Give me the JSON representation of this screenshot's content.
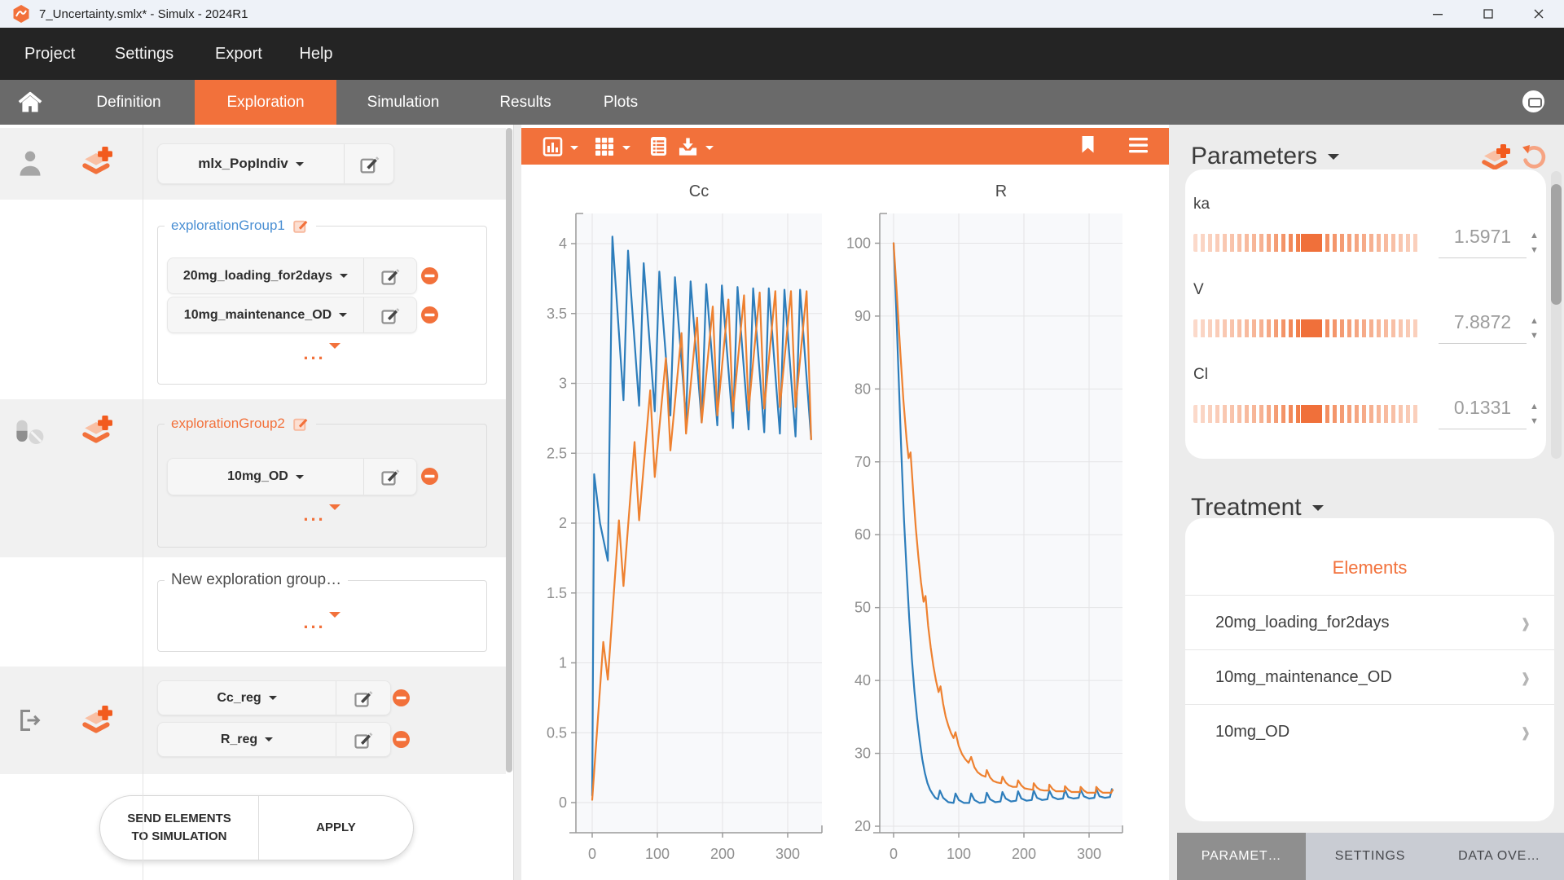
{
  "window": {
    "title": "7_Uncertainty.smlx* - Simulx - 2024R1"
  },
  "menu": {
    "items": [
      "Project",
      "Settings",
      "Export",
      "Help"
    ]
  },
  "nav": {
    "tabs": [
      {
        "label": "Definition"
      },
      {
        "label": "Exploration",
        "active": true
      },
      {
        "label": "Simulation"
      },
      {
        "label": "Results"
      },
      {
        "label": "Plots"
      }
    ]
  },
  "sidebar": {
    "model_selector": {
      "label": "mlx_PopIndiv"
    },
    "groups": [
      {
        "name": "explorationGroup1",
        "items": [
          "20mg_loading_for2days",
          "10mg_maintenance_OD"
        ]
      },
      {
        "name": "explorationGroup2",
        "items": [
          "10mg_OD"
        ]
      }
    ],
    "new_group_label": "New exploration group…",
    "more_label": "...",
    "regressors": [
      "Cc_reg",
      "R_reg"
    ],
    "send_line1": "SEND ELEMENTS",
    "send_line2": "TO SIMULATION",
    "apply_label": "APPLY"
  },
  "icons": {
    "plot_toolbar": [
      "chart-type",
      "layout-grid",
      "data-table",
      "export-download",
      "bookmark",
      "menu"
    ],
    "sidebar": [
      "individual",
      "treatment-pills",
      "output",
      "add-element",
      "edit",
      "remove"
    ]
  },
  "chart_data": [
    {
      "type": "line",
      "title": "Cc",
      "xlabel": "",
      "ylabel": "",
      "xlim": [
        -25,
        352
      ],
      "ylim": [
        -0.2,
        4.2
      ],
      "grid": true,
      "legend_position": "none",
      "xticks": [
        0,
        100,
        200,
        300
      ],
      "yticks": [
        0,
        0.5,
        1,
        1.5,
        2,
        2.5,
        3,
        3.5,
        4
      ],
      "series": [
        {
          "name": "explorationGroup1 (20mg_loading_for2days + 10mg_maintenance_OD)",
          "color": "#2d7dbb",
          "points": [
            [
              0,
              0.05
            ],
            [
              3,
              2.35
            ],
            [
              12,
              2.0
            ],
            [
              24,
              1.73
            ],
            [
              31,
              4.05
            ],
            [
              48,
              2.88
            ],
            [
              55,
              3.95
            ],
            [
              72,
              2.84
            ],
            [
              79,
              3.86
            ],
            [
              96,
              2.8
            ],
            [
              103,
              3.8
            ],
            [
              120,
              2.77
            ],
            [
              127,
              3.76
            ],
            [
              144,
              2.74
            ],
            [
              151,
              3.73
            ],
            [
              168,
              2.72
            ],
            [
              175,
              3.71
            ],
            [
              192,
              2.7
            ],
            [
              199,
              3.7
            ],
            [
              216,
              2.68
            ],
            [
              223,
              3.69
            ],
            [
              240,
              2.67
            ],
            [
              247,
              3.68
            ],
            [
              264,
              2.65
            ],
            [
              271,
              3.68
            ],
            [
              288,
              2.64
            ],
            [
              295,
              3.67
            ],
            [
              312,
              2.62
            ],
            [
              319,
              3.67
            ],
            [
              336,
              2.6
            ]
          ]
        },
        {
          "name": "explorationGroup2 (10mg_OD)",
          "color": "#ee8130",
          "points": [
            [
              0,
              0.02
            ],
            [
              17,
              1.15
            ],
            [
              24,
              0.88
            ],
            [
              41,
              2.02
            ],
            [
              48,
              1.55
            ],
            [
              65,
              2.58
            ],
            [
              72,
              2.02
            ],
            [
              89,
              2.95
            ],
            [
              96,
              2.33
            ],
            [
              113,
              3.18
            ],
            [
              120,
              2.52
            ],
            [
              137,
              3.36
            ],
            [
              144,
              2.64
            ],
            [
              161,
              3.47
            ],
            [
              168,
              2.72
            ],
            [
              185,
              3.55
            ],
            [
              192,
              2.77
            ],
            [
              209,
              3.6
            ],
            [
              216,
              2.8
            ],
            [
              233,
              3.63
            ],
            [
              240,
              2.81
            ],
            [
              257,
              3.65
            ],
            [
              264,
              2.82
            ],
            [
              281,
              3.66
            ],
            [
              288,
              2.83
            ],
            [
              305,
              3.66
            ],
            [
              312,
              2.83
            ],
            [
              329,
              3.66
            ],
            [
              336,
              2.6
            ]
          ]
        }
      ]
    },
    {
      "type": "line",
      "title": "R",
      "xlabel": "",
      "ylabel": "",
      "xlim": [
        -25,
        352
      ],
      "ylim": [
        19,
        104
      ],
      "grid": true,
      "legend_position": "none",
      "xticks": [
        0,
        100,
        200,
        300
      ],
      "yticks": [
        20,
        30,
        40,
        50,
        60,
        70,
        80,
        90,
        100
      ],
      "series": [
        {
          "name": "explorationGroup1 (20mg_loading_for2days + 10mg_maintenance_OD)",
          "color": "#2d7dbb",
          "points": [
            [
              0,
              100
            ],
            [
              4,
              91
            ],
            [
              8,
              81
            ],
            [
              12,
              71
            ],
            [
              16,
              62
            ],
            [
              20,
              55
            ],
            [
              24,
              48.5
            ],
            [
              28,
              43
            ],
            [
              32,
              38.5
            ],
            [
              36,
              34.8
            ],
            [
              40,
              31.8
            ],
            [
              44,
              29.2
            ],
            [
              48,
              27.3
            ],
            [
              52,
              25.9
            ],
            [
              56,
              25
            ],
            [
              60,
              24.4
            ],
            [
              64,
              23.9
            ],
            [
              68,
              23.7
            ],
            [
              71,
              24.9
            ],
            [
              76,
              23.9
            ],
            [
              84,
              23.3
            ],
            [
              92,
              23.2
            ],
            [
              95,
              24.5
            ],
            [
              100,
              23.6
            ],
            [
              108,
              23.2
            ],
            [
              116,
              23.2
            ],
            [
              119,
              24.5
            ],
            [
              124,
              23.6
            ],
            [
              132,
              23.2
            ],
            [
              140,
              23.3
            ],
            [
              143,
              24.6
            ],
            [
              148,
              23.7
            ],
            [
              156,
              23.3
            ],
            [
              164,
              23.4
            ],
            [
              167,
              24.7
            ],
            [
              172,
              23.8
            ],
            [
              180,
              23.4
            ],
            [
              188,
              23.5
            ],
            [
              191,
              24.8
            ],
            [
              196,
              23.8
            ],
            [
              204,
              23.5
            ],
            [
              212,
              23.6
            ],
            [
              215,
              24.9
            ],
            [
              220,
              23.9
            ],
            [
              228,
              23.6
            ],
            [
              236,
              23.7
            ],
            [
              239,
              24.9
            ],
            [
              244,
              24
            ],
            [
              252,
              23.7
            ],
            [
              260,
              23.8
            ],
            [
              263,
              25
            ],
            [
              268,
              24
            ],
            [
              276,
              23.8
            ],
            [
              284,
              23.9
            ],
            [
              287,
              25
            ],
            [
              292,
              24.1
            ],
            [
              300,
              23.8
            ],
            [
              308,
              23.9
            ],
            [
              311,
              25.1
            ],
            [
              316,
              24.1
            ],
            [
              324,
              23.9
            ],
            [
              332,
              24
            ],
            [
              335,
              25.1
            ],
            [
              336,
              24.9
            ]
          ]
        },
        {
          "name": "explorationGroup2 (10mg_OD)",
          "color": "#ee8130",
          "points": [
            [
              0,
              100
            ],
            [
              5,
              93
            ],
            [
              10,
              85.5
            ],
            [
              15,
              78.5
            ],
            [
              20,
              73
            ],
            [
              23,
              70.5
            ],
            [
              26,
              71.3
            ],
            [
              30,
              66
            ],
            [
              34,
              61
            ],
            [
              38,
              57
            ],
            [
              42,
              53.5
            ],
            [
              46,
              50.8
            ],
            [
              49,
              51.6
            ],
            [
              53,
              47.5
            ],
            [
              57,
              44.5
            ],
            [
              61,
              42
            ],
            [
              65,
              40
            ],
            [
              69,
              38.4
            ],
            [
              72,
              39.2
            ],
            [
              76,
              36.8
            ],
            [
              80,
              35
            ],
            [
              84,
              33.8
            ],
            [
              88,
              32.8
            ],
            [
              92,
              32.1
            ],
            [
              95,
              32.9
            ],
            [
              100,
              31
            ],
            [
              105,
              29.9
            ],
            [
              110,
              29.2
            ],
            [
              115,
              28.7
            ],
            [
              119,
              29.5
            ],
            [
              124,
              28.1
            ],
            [
              129,
              27.4
            ],
            [
              135,
              27
            ],
            [
              141,
              26.8
            ],
            [
              143,
              27.7
            ],
            [
              148,
              26.7
            ],
            [
              153,
              26.2
            ],
            [
              159,
              26
            ],
            [
              165,
              25.9
            ],
            [
              167,
              26.8
            ],
            [
              172,
              26
            ],
            [
              177,
              25.6
            ],
            [
              183,
              25.4
            ],
            [
              189,
              25.4
            ],
            [
              191,
              26.3
            ],
            [
              196,
              25.6
            ],
            [
              201,
              25.2
            ],
            [
              207,
              25.1
            ],
            [
              214,
              25
            ],
            [
              215,
              25.9
            ],
            [
              220,
              25.3
            ],
            [
              225,
              25
            ],
            [
              231,
              24.9
            ],
            [
              238,
              24.9
            ],
            [
              239,
              25.7
            ],
            [
              244,
              25.1
            ],
            [
              249,
              24.8
            ],
            [
              255,
              24.8
            ],
            [
              262,
              24.8
            ],
            [
              263,
              25.5
            ],
            [
              268,
              25
            ],
            [
              273,
              24.7
            ],
            [
              279,
              24.7
            ],
            [
              286,
              24.7
            ],
            [
              287,
              25.4
            ],
            [
              292,
              24.9
            ],
            [
              297,
              24.6
            ],
            [
              303,
              24.6
            ],
            [
              310,
              24.6
            ],
            [
              311,
              25.4
            ],
            [
              316,
              24.9
            ],
            [
              321,
              24.6
            ],
            [
              327,
              24.6
            ],
            [
              334,
              24.6
            ],
            [
              336,
              25
            ]
          ]
        }
      ]
    }
  ],
  "parameters_panel": {
    "title": "Parameters",
    "rows": [
      {
        "name": "ka",
        "value": "1.5971"
      },
      {
        "name": "V",
        "value": "7.8872"
      },
      {
        "name": "Cl",
        "value": "0.1331"
      }
    ]
  },
  "treatment_panel": {
    "title": "Treatment",
    "section_label": "Elements",
    "elements": [
      "20mg_loading_for2days",
      "10mg_maintenance_OD",
      "10mg_OD"
    ]
  },
  "bottom_tabs": [
    {
      "label": "PARAMET…",
      "active": true
    },
    {
      "label": "SETTINGS"
    },
    {
      "label": "DATA OVE…"
    }
  ],
  "colors": {
    "accent": "#f2713b",
    "plot_blue": "#2d7dbb",
    "plot_orange": "#ee8130",
    "group1_label": "#4a8fd3"
  }
}
